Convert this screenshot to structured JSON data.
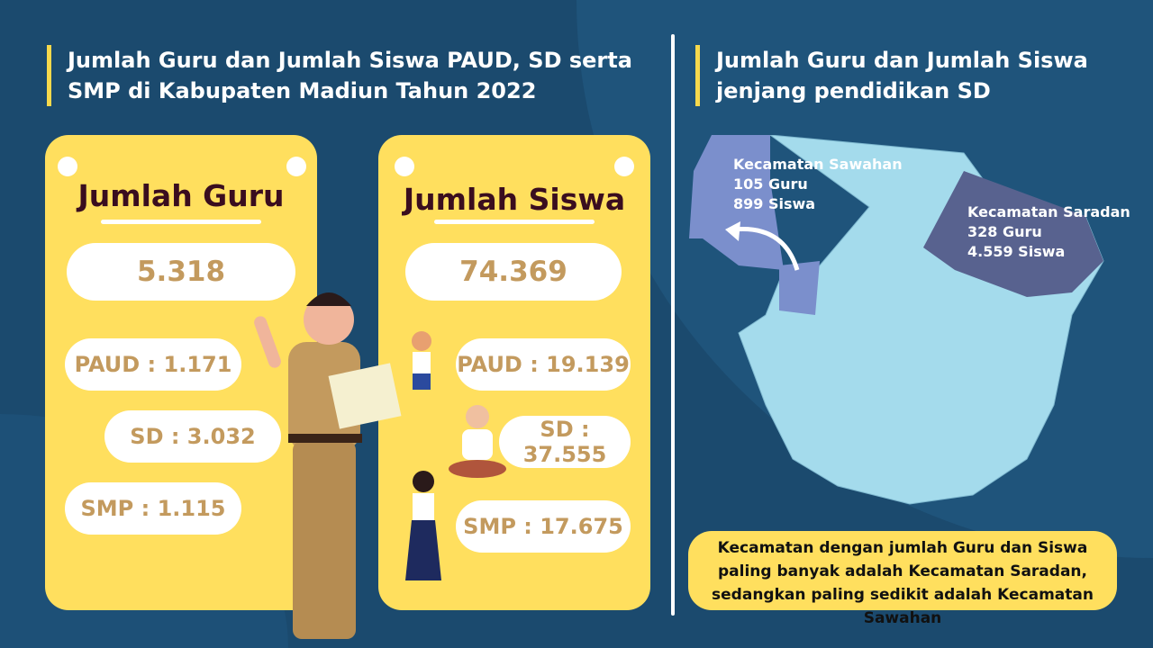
{
  "left": {
    "title_line1": "Jumlah Guru dan Jumlah Siswa PAUD, SD serta",
    "title_line2": "SMP di Kabupaten Madiun Tahun 2022"
  },
  "guru": {
    "heading": "Jumlah Guru",
    "total": "5.318",
    "paud": "PAUD : 1.171",
    "sd": "SD : 3.032",
    "smp": "SMP : 1.115"
  },
  "siswa": {
    "heading": "Jumlah Siswa",
    "total": "74.369",
    "paud": "PAUD : 19.139",
    "sd": "SD : 37.555",
    "smp": "SMP : 17.675"
  },
  "right": {
    "title_line1": "Jumlah Guru dan Jumlah Siswa",
    "title_line2": "jenjang pendidikan SD"
  },
  "map": {
    "sawahan": {
      "line1": "Kecamatan Sawahan",
      "line2": "105 Guru",
      "line3": "899 Siswa"
    },
    "saradan": {
      "line1": "Kecamatan Saradan",
      "line2": "328 Guru",
      "line3": "4.559 Siswa"
    }
  },
  "note": "Kecamatan dengan jumlah Guru dan Siswa paling banyak adalah Kecamatan Saradan, sedangkan paling sedikit adalah Kecamatan Sawahan",
  "colors": {
    "background": "#1b4a6e",
    "card": "#ffdf5e",
    "accent": "#f7d94c",
    "map_base": "#a4dbec",
    "sawahan": "#7b8fcc",
    "saradan": "#58628f"
  }
}
